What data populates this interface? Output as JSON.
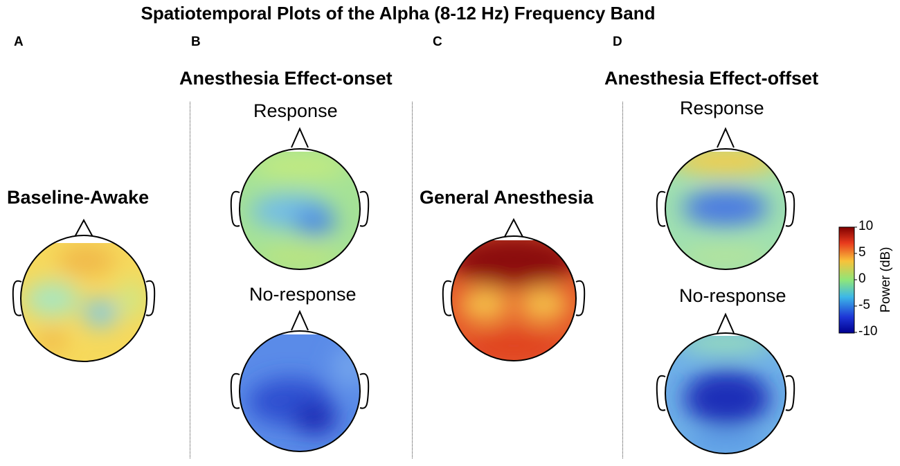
{
  "figure": {
    "title": "Spatiotemporal Plots of the Alpha (8-12 Hz) Frequency Band",
    "panels": {
      "A": {
        "letter": "A",
        "condition": "Baseline-Awake"
      },
      "B": {
        "letter": "B",
        "title": "Anesthesia Effect-onset",
        "top_label": "Response",
        "bottom_label": "No-response"
      },
      "C": {
        "letter": "C",
        "condition": "General Anesthesia"
      },
      "D": {
        "letter": "D",
        "title": "Anesthesia Effect-offset",
        "top_label": "Response",
        "bottom_label": "No-response"
      }
    },
    "colorbar": {
      "label": "Power (dB)",
      "ticks": [
        "10",
        "5",
        "0",
        "-5",
        "-10"
      ],
      "range": [
        -10,
        10
      ],
      "colormap": "jet",
      "stops": [
        "#7f0000",
        "#e83a1d",
        "#f8c23a",
        "#8ee67a",
        "#3cb7e8",
        "#1d35d6",
        "#00008f"
      ]
    }
  },
  "chart_data": {
    "type": "heatmap",
    "title": "Spatiotemporal Plots of the Alpha (8-12 Hz) Frequency Band",
    "colorbar_label": "Power (dB)",
    "value_range": [
      -10,
      10
    ],
    "maps": [
      {
        "panel": "A",
        "condition": "Baseline-Awake",
        "approx_mean_db": 2,
        "pattern": "mostly yellow, cyan posterior patch"
      },
      {
        "panel": "B",
        "condition": "Anesthesia Effect-onset",
        "group": "Response",
        "approx_mean_db": -3,
        "pattern": "green frontal, blue central-posterior"
      },
      {
        "panel": "B",
        "condition": "Anesthesia Effect-onset",
        "group": "No-response",
        "approx_mean_db": -8,
        "pattern": "blue overall, darkest posterior"
      },
      {
        "panel": "C",
        "condition": "General Anesthesia",
        "approx_mean_db": 8,
        "pattern": "dark red frontal, orange posterior"
      },
      {
        "panel": "D",
        "condition": "Anesthesia Effect-offset",
        "group": "Response",
        "approx_mean_db": -2,
        "pattern": "yellow frontal, blue central"
      },
      {
        "panel": "D",
        "condition": "Anesthesia Effect-offset",
        "group": "No-response",
        "approx_mean_db": -8,
        "pattern": "dark blue central, cyan periphery"
      }
    ]
  }
}
